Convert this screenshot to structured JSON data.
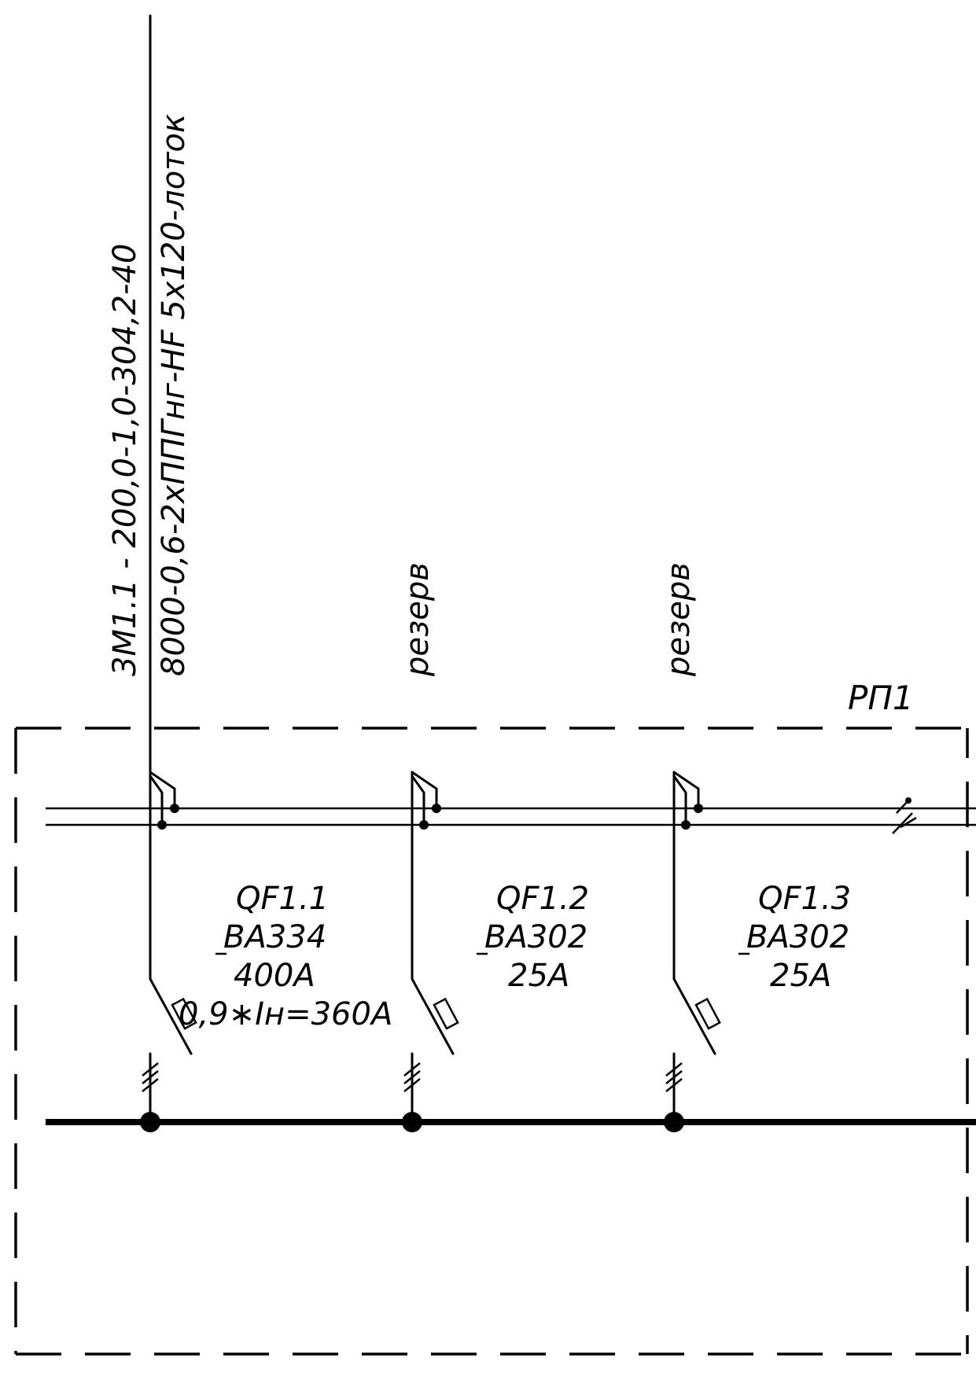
{
  "feeder": {
    "line1": "3М1.1  -  200,0-1,0-304,2-40",
    "line2": "8000-0,6-2хППГнг-HF 5x120-лоток"
  },
  "reserve": [
    "резерв",
    "резерв"
  ],
  "panel": {
    "name": "РП1"
  },
  "breakers": [
    {
      "id": "QF1.1",
      "model": "ВА334",
      "rating": "400А",
      "setting": "0,9∗Iн=360А"
    },
    {
      "id": "QF1.2",
      "model": "ВА302",
      "rating": "25А"
    },
    {
      "id": "QF1.3",
      "model": "ВА302",
      "rating": "25А"
    }
  ],
  "colors": {
    "ink": "#000000",
    "background": "#ffffff"
  }
}
